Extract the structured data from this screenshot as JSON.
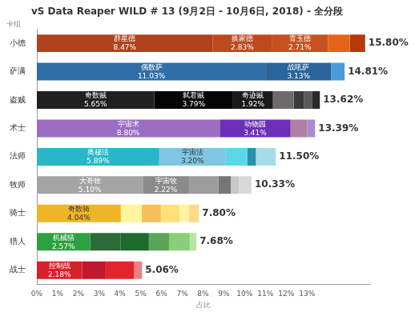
{
  "chart_data": {
    "type": "bar",
    "title": "vS Data Reaper WILD # 13 (9月2日 - 10月6日, 2018) - 全分段",
    "x_label": "占比",
    "y_label": "卡组",
    "orientation": "horizontal",
    "stacked": true,
    "data_labels": true,
    "grid": false,
    "legend": false,
    "categories": [
      "小德",
      "萨满",
      "盗贼",
      "术士",
      "法师",
      "牧师",
      "骑士",
      "猎人",
      "战士"
    ],
    "stacks": [
      {
        "names": [
          "群星德",
          "换家德",
          "青玉德",
          null,
          null
        ],
        "values": [
          8.47,
          2.83,
          2.71,
          1.05,
          0.74
        ],
        "value_labels": [
          "8.47%",
          "2.83%",
          "2.71%",
          null,
          null
        ],
        "colors": [
          "#b0421e",
          "#bd4a1e",
          "#c7511f",
          "#e8631a",
          "#b8370c"
        ]
      },
      {
        "names": [
          "偶数萨",
          "战吼萨",
          null
        ],
        "values": [
          11.03,
          3.13,
          0.65
        ],
        "value_labels": [
          "11.03%",
          "3.13%",
          null
        ],
        "colors": [
          "#2f6ea6",
          "#2a649a",
          "#4a9bd8"
        ]
      },
      {
        "names": [
          "奇数贼",
          "弑君贼",
          "奇迹贼",
          null,
          null,
          null,
          null
        ],
        "values": [
          5.65,
          3.79,
          1.92,
          1.0,
          0.5,
          0.4,
          0.36
        ],
        "value_labels": [
          "5.65%",
          "3.79%",
          "1.92%",
          null,
          null,
          null,
          null
        ],
        "colors": [
          "#202020",
          "#050505",
          "#1a1a1a",
          "#6e6a6a",
          "#3a3a3a",
          "#5a5a5a",
          "#2a2a2a"
        ]
      },
      {
        "names": [
          "宇宙术",
          "动物园",
          null,
          null
        ],
        "values": [
          8.8,
          3.41,
          0.8,
          0.38
        ],
        "value_labels": [
          "8.80%",
          "3.41%",
          null,
          null
        ],
        "colors": [
          "#9b6ec4",
          "#6c2fb8",
          "#b07fa6",
          "#a88bd0"
        ]
      },
      {
        "names": [
          "奥秘法",
          "宇宙法",
          null,
          null,
          null
        ],
        "values": [
          5.89,
          3.2,
          1.05,
          0.4,
          0.96
        ],
        "value_labels": [
          "5.89%",
          "3.20%",
          null,
          null,
          null
        ],
        "colors": [
          "#26b8c8",
          "#7fc6e0",
          "#5ad8e8",
          "#2a8faa",
          "#a8dbe8"
        ]
      },
      {
        "names": [
          "大哥牧",
          "宇宙牧",
          null,
          null,
          null,
          null
        ],
        "values": [
          5.1,
          2.22,
          1.41,
          0.6,
          0.4,
          0.6
        ],
        "value_labels": [
          "5.10%",
          "2.22%",
          null,
          null,
          null,
          null
        ],
        "colors": [
          "#a4a4a4",
          "#8a8a8a",
          "#9c9c9c",
          "#767676",
          "#c8c8c8",
          "#d8d8d8"
        ]
      },
      {
        "names": [
          "奇数骑",
          null,
          null,
          null,
          null,
          null
        ],
        "values": [
          4.04,
          1.0,
          0.93,
          0.9,
          0.45,
          0.48
        ],
        "value_labels": [
          "4.04%",
          null,
          null,
          null,
          null,
          null
        ],
        "colors": [
          "#f0b429",
          "#fff59a",
          "#f9bf5a",
          "#ffe17a",
          "#fff3a6",
          "#ffd98a"
        ]
      },
      {
        "names": [
          "机械猎",
          null,
          null,
          null,
          null,
          null
        ],
        "values": [
          2.57,
          1.45,
          1.37,
          0.97,
          1.0,
          0.32
        ],
        "value_labels": [
          "2.57%",
          null,
          null,
          null,
          null,
          null
        ],
        "colors": [
          "#2ea043",
          "#2b6b3a",
          "#1e6b2e",
          "#5aa55a",
          "#88cf78",
          "#b9e3a8"
        ]
      },
      {
        "names": [
          "控制战",
          null,
          null,
          null
        ],
        "values": [
          2.18,
          1.13,
          1.37,
          0.38
        ],
        "value_labels": [
          "2.18%",
          null,
          null,
          null
        ],
        "colors": [
          "#d8202a",
          "#c0182e",
          "#e0262a",
          "#f08080"
        ]
      }
    ],
    "totals": [
      15.8,
      14.81,
      13.62,
      13.39,
      11.5,
      10.33,
      7.8,
      7.68,
      5.06
    ],
    "total_labels": [
      "15.80%",
      "14.81%",
      "13.62%",
      "13.39%",
      "11.50%",
      "10.33%",
      "7.80%",
      "7.68%",
      "5.06%"
    ],
    "xlim": [
      0,
      16
    ],
    "xticks": [
      {
        "value": 0,
        "label": "0%"
      },
      {
        "value": 1,
        "label": "1%"
      },
      {
        "value": 2,
        "label": "2%"
      },
      {
        "value": 3,
        "label": "3%"
      },
      {
        "value": 4,
        "label": "4%"
      },
      {
        "value": 5,
        "label": "5%"
      },
      {
        "value": 6,
        "label": "6%"
      },
      {
        "value": 7,
        "label": "7%"
      },
      {
        "value": 8,
        "label": "8%"
      },
      {
        "value": 9,
        "label": "9%"
      },
      {
        "value": 10,
        "label": "10%"
      },
      {
        "value": 11,
        "label": "11%"
      },
      {
        "value": 12,
        "label": "12%"
      },
      {
        "value": 13,
        "label": "13%"
      }
    ]
  }
}
